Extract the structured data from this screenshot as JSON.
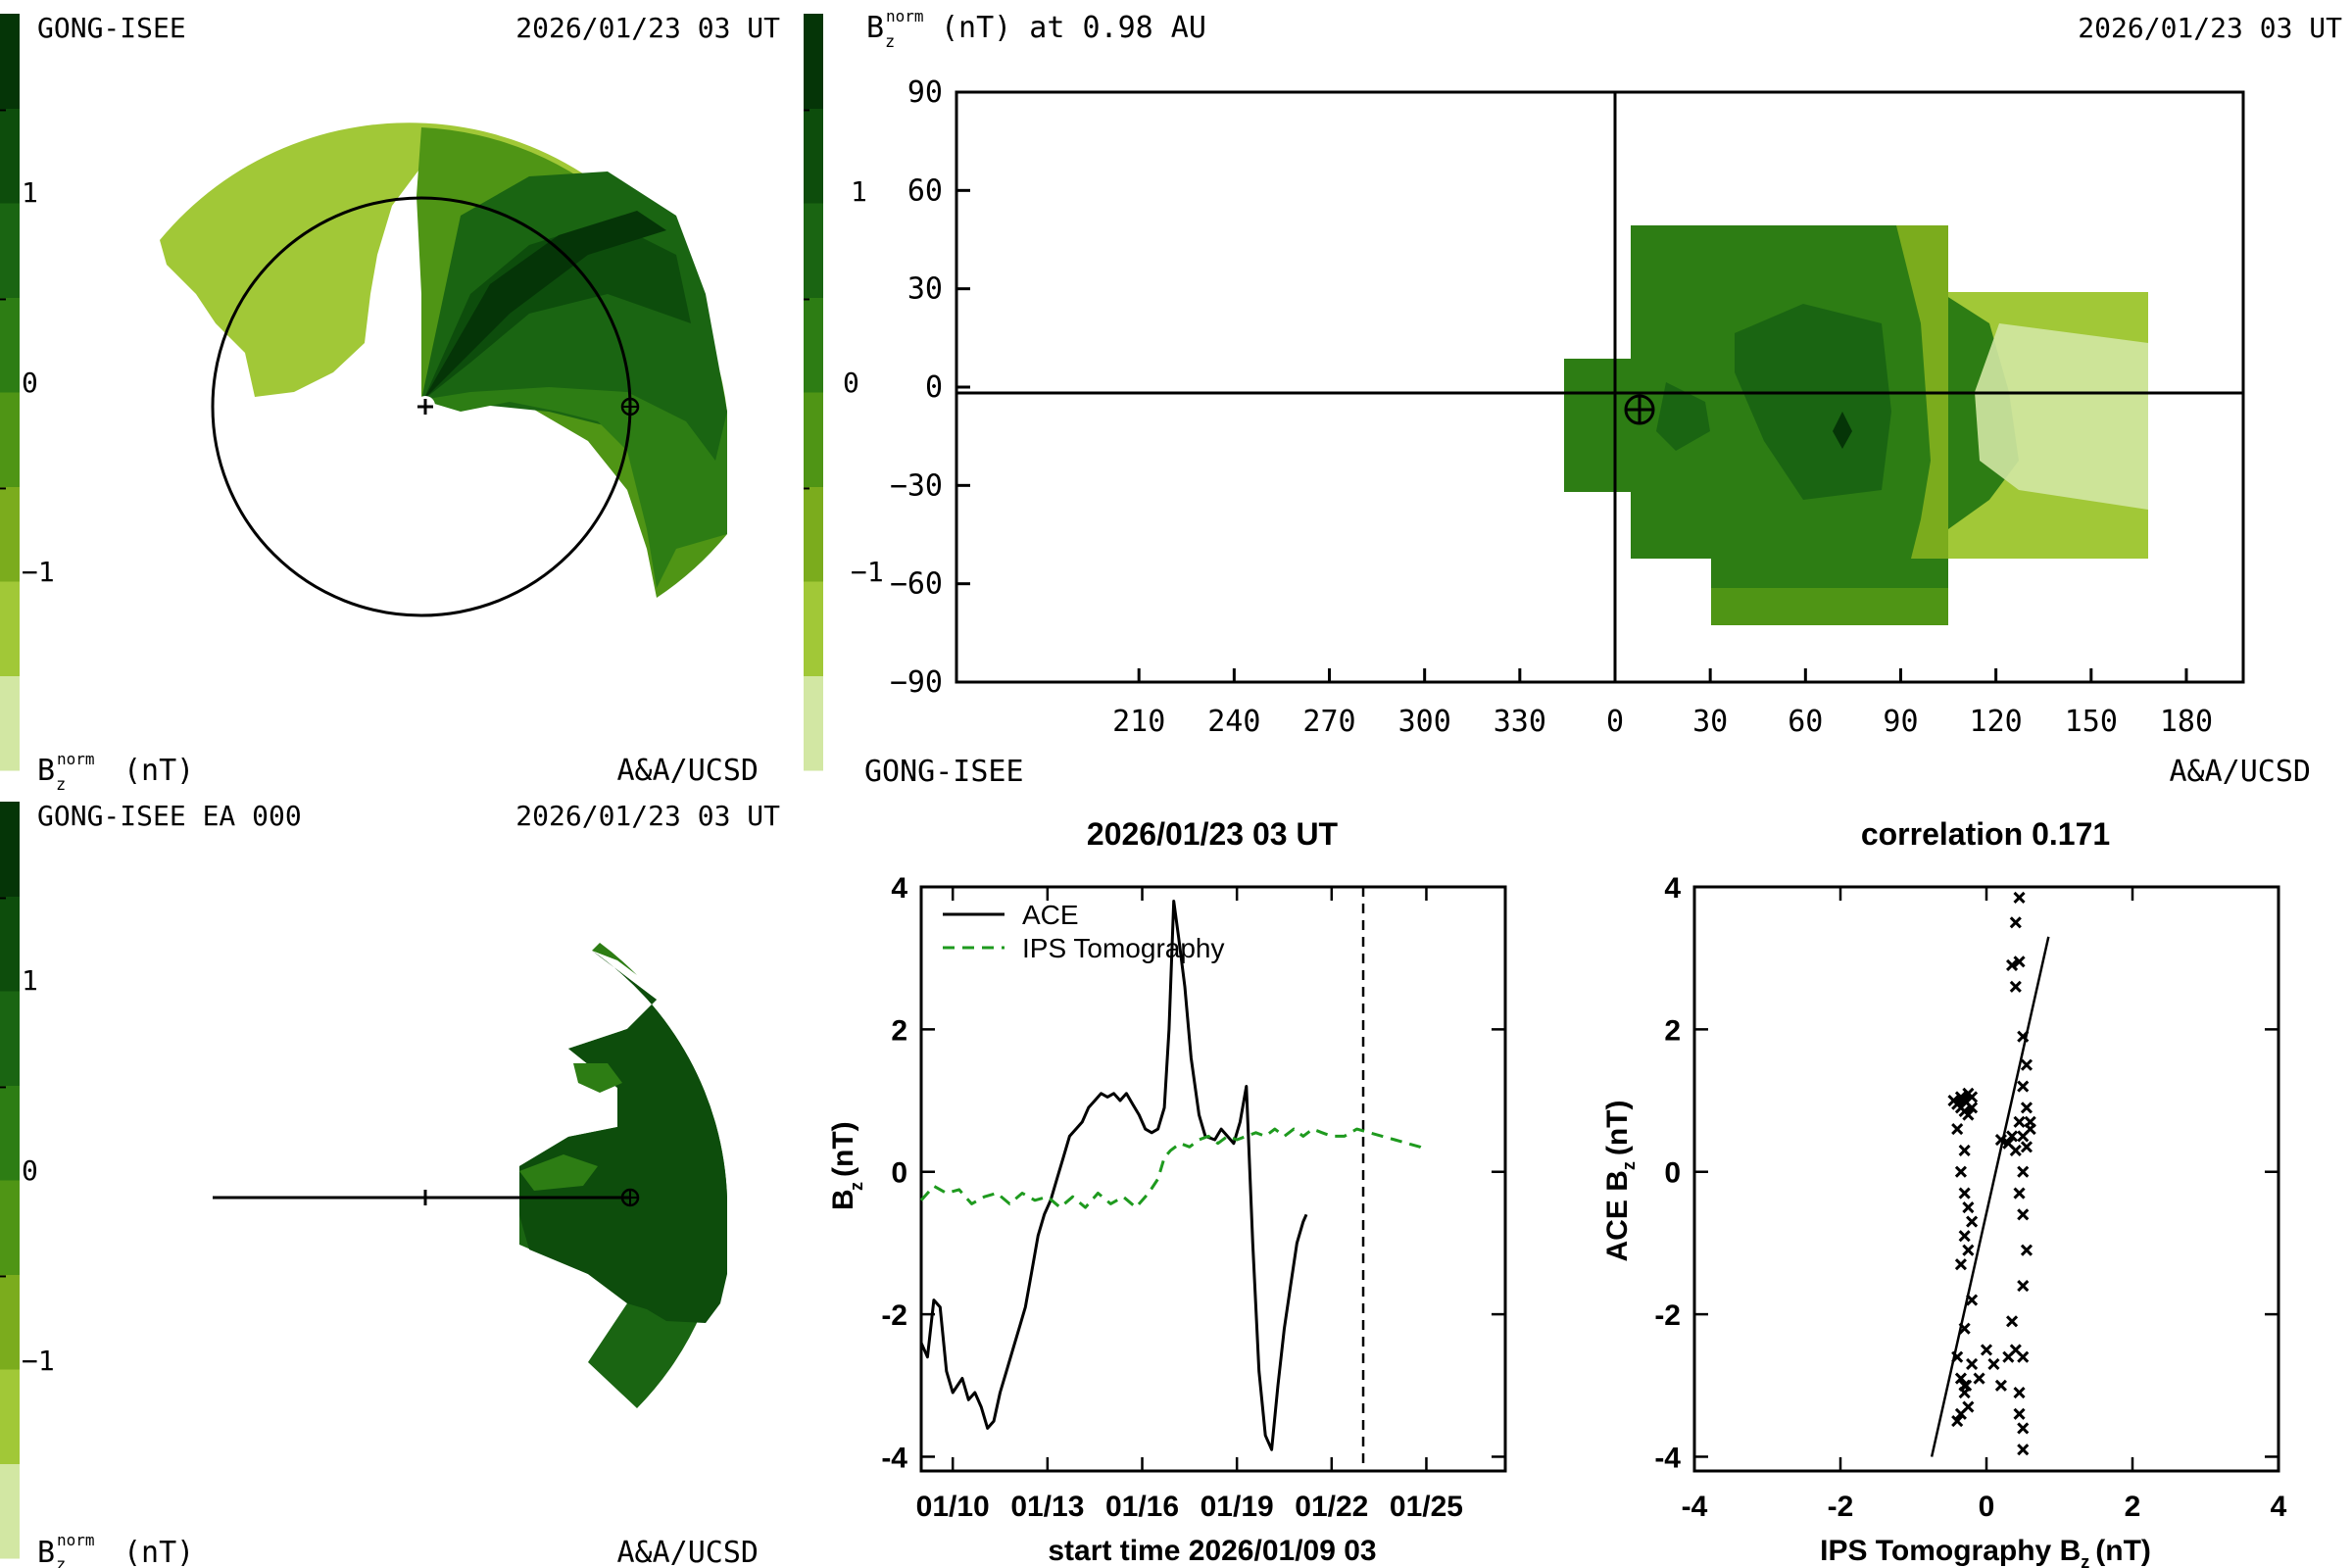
{
  "colors": {
    "scale": [
      "#d2e7a3",
      "#a1c837",
      "#7bac1d",
      "#4f9515",
      "#2d7d14",
      "#1a6512",
      "#0d4d0c",
      "#053507"
    ],
    "background": "#ffffff",
    "ink": "#000000",
    "ips_line": "#1e9a1e"
  },
  "icons": {
    "earth": "earth-crosshair-icon",
    "sun": "sun-plus-icon"
  },
  "panel_top_left": {
    "source": "GONG-ISEE",
    "datetime": "2026/01/23 03 UT",
    "cbar_ticks": [
      "1",
      "0",
      "−1"
    ],
    "cbar_label": "Bᶻ",
    "cbar_label_sup": "norm",
    "cbar_label_unit": "(nT)",
    "credit": "A&A/UCSD"
  },
  "panel_top_right": {
    "title_var": "B",
    "title_sub": "z",
    "title_sup": "norm",
    "title_rest": "(nT) at 0.98 AU",
    "datetime": "2026/01/23 03 UT",
    "source": "GONG-ISEE",
    "credit": "A&A/UCSD",
    "cbar_ticks": [
      "1",
      "0",
      "−1"
    ],
    "yticks": [
      "90",
      "60",
      "30",
      "0",
      "−30",
      "−60",
      "−90"
    ],
    "xticks": [
      "210",
      "240",
      "270",
      "300",
      "330",
      "0",
      "30",
      "60",
      "90",
      "120",
      "150",
      "180"
    ]
  },
  "panel_bottom_left": {
    "source": "GONG-ISEE EA 000",
    "datetime": "2026/01/23 03 UT",
    "cbar_ticks": [
      "1",
      "0",
      "−1"
    ],
    "cbar_label": "Bᶻ",
    "cbar_label_sup": "norm",
    "cbar_label_unit": "(nT)",
    "credit": "A&A/UCSD"
  },
  "chart_data": [
    {
      "type": "line",
      "title": "2026/01/23 03 UT",
      "xlabel": "start time 2026/01/09 03",
      "ylabel_var": "B",
      "ylabel_sub": "z",
      "ylabel_unit": "(nT)",
      "xtick_labels": [
        "01/10",
        "01/13",
        "01/16",
        "01/19",
        "01/22",
        "01/25"
      ],
      "xtick_days": [
        1,
        4,
        7,
        10,
        13,
        16
      ],
      "xlim_days": [
        0,
        18.5
      ],
      "ylim": [
        -4.2,
        4
      ],
      "ytick_labels": [
        "4",
        "2",
        "0",
        "-2",
        "-4"
      ],
      "ytick_values": [
        4,
        2,
        0,
        -2,
        -4
      ],
      "vline_day": 14,
      "legend": "top-left",
      "series": [
        {
          "name": "ACE",
          "style": "solid",
          "points": [
            [
              0,
              -2.4
            ],
            [
              0.2,
              -2.6
            ],
            [
              0.4,
              -1.8
            ],
            [
              0.6,
              -1.9
            ],
            [
              0.8,
              -2.8
            ],
            [
              1.0,
              -3.1
            ],
            [
              1.3,
              -2.9
            ],
            [
              1.5,
              -3.2
            ],
            [
              1.7,
              -3.1
            ],
            [
              1.9,
              -3.3
            ],
            [
              2.1,
              -3.6
            ],
            [
              2.3,
              -3.5
            ],
            [
              2.5,
              -3.1
            ],
            [
              2.7,
              -2.8
            ],
            [
              2.9,
              -2.5
            ],
            [
              3.1,
              -2.2
            ],
            [
              3.3,
              -1.9
            ],
            [
              3.5,
              -1.4
            ],
            [
              3.7,
              -0.9
            ],
            [
              3.9,
              -0.6
            ],
            [
              4.1,
              -0.4
            ],
            [
              4.3,
              -0.1
            ],
            [
              4.5,
              0.2
            ],
            [
              4.7,
              0.5
            ],
            [
              4.9,
              0.6
            ],
            [
              5.1,
              0.7
            ],
            [
              5.3,
              0.9
            ],
            [
              5.5,
              1.0
            ],
            [
              5.7,
              1.1
            ],
            [
              5.9,
              1.05
            ],
            [
              6.1,
              1.1
            ],
            [
              6.3,
              1.0
            ],
            [
              6.5,
              1.1
            ],
            [
              6.7,
              0.95
            ],
            [
              6.9,
              0.8
            ],
            [
              7.1,
              0.6
            ],
            [
              7.3,
              0.55
            ],
            [
              7.5,
              0.6
            ],
            [
              7.7,
              0.9
            ],
            [
              7.85,
              2.0
            ],
            [
              8.0,
              3.8
            ],
            [
              8.15,
              3.3
            ],
            [
              8.35,
              2.6
            ],
            [
              8.55,
              1.6
            ],
            [
              8.8,
              0.8
            ],
            [
              9.0,
              0.5
            ],
            [
              9.3,
              0.45
            ],
            [
              9.5,
              0.6
            ],
            [
              9.7,
              0.5
            ],
            [
              9.9,
              0.4
            ],
            [
              10.1,
              0.7
            ],
            [
              10.3,
              1.2
            ],
            [
              10.5,
              -1.0
            ],
            [
              10.7,
              -2.8
            ],
            [
              10.9,
              -3.7
            ],
            [
              11.1,
              -3.9
            ],
            [
              11.3,
              -3.0
            ],
            [
              11.5,
              -2.2
            ],
            [
              11.7,
              -1.6
            ],
            [
              11.9,
              -1.0
            ],
            [
              12.1,
              -0.7
            ],
            [
              12.2,
              -0.6
            ]
          ]
        },
        {
          "name": "IPS Tomography",
          "style": "dashed",
          "points": [
            [
              0,
              -0.4
            ],
            [
              0.4,
              -0.2
            ],
            [
              0.8,
              -0.3
            ],
            [
              1.2,
              -0.25
            ],
            [
              1.6,
              -0.45
            ],
            [
              2.0,
              -0.35
            ],
            [
              2.4,
              -0.3
            ],
            [
              2.8,
              -0.45
            ],
            [
              3.2,
              -0.3
            ],
            [
              3.6,
              -0.4
            ],
            [
              4.0,
              -0.35
            ],
            [
              4.4,
              -0.5
            ],
            [
              4.8,
              -0.35
            ],
            [
              5.2,
              -0.5
            ],
            [
              5.6,
              -0.3
            ],
            [
              6.0,
              -0.45
            ],
            [
              6.4,
              -0.35
            ],
            [
              6.8,
              -0.5
            ],
            [
              7.2,
              -0.3
            ],
            [
              7.5,
              -0.1
            ],
            [
              7.7,
              0.2
            ],
            [
              7.9,
              0.3
            ],
            [
              8.2,
              0.4
            ],
            [
              8.5,
              0.35
            ],
            [
              8.8,
              0.45
            ],
            [
              9.1,
              0.5
            ],
            [
              9.4,
              0.4
            ],
            [
              9.7,
              0.5
            ],
            [
              10.0,
              0.45
            ],
            [
              10.3,
              0.5
            ],
            [
              10.6,
              0.55
            ],
            [
              10.9,
              0.5
            ],
            [
              11.2,
              0.6
            ],
            [
              11.5,
              0.5
            ],
            [
              11.8,
              0.6
            ],
            [
              12.1,
              0.5
            ],
            [
              12.4,
              0.6
            ],
            [
              12.7,
              0.55
            ],
            [
              13.0,
              0.5
            ],
            [
              13.4,
              0.5
            ],
            [
              13.8,
              0.6
            ],
            [
              14.2,
              0.55
            ],
            [
              14.6,
              0.5
            ],
            [
              15.0,
              0.45
            ],
            [
              15.4,
              0.4
            ],
            [
              15.8,
              0.35
            ],
            [
              16.0,
              0.3
            ]
          ]
        }
      ]
    },
    {
      "type": "scatter",
      "title": "correlation 0.171",
      "xlabel_pre": "IPS Tomography B",
      "xlabel_sub": "z",
      "xlabel_unit": "(nT)",
      "ylabel_pre": "ACE B",
      "ylabel_sub": "z",
      "ylabel_unit": "(nT)",
      "xlim": [
        -4,
        4
      ],
      "ylim": [
        -4.2,
        4
      ],
      "xtick_labels": [
        "-4",
        "-2",
        "0",
        "2",
        "4"
      ],
      "xtick_values": [
        -4,
        -2,
        0,
        2,
        4
      ],
      "ytick_labels": [
        "4",
        "2",
        "0",
        "-2",
        "-4"
      ],
      "ytick_values": [
        4,
        2,
        0,
        -2,
        -4
      ],
      "fit_line": [
        [
          -0.75,
          -4.0
        ],
        [
          0.85,
          3.3
        ]
      ],
      "points": [
        [
          -0.3,
          1.0
        ],
        [
          -0.35,
          0.9
        ],
        [
          -0.2,
          1.05
        ],
        [
          -0.4,
          0.95
        ],
        [
          -0.25,
          1.1
        ],
        [
          -0.3,
          0.85
        ],
        [
          -0.45,
          1.0
        ],
        [
          -0.2,
          0.9
        ],
        [
          -0.35,
          1.05
        ],
        [
          -0.25,
          0.8
        ],
        [
          -0.4,
          0.6
        ],
        [
          -0.3,
          0.3
        ],
        [
          -0.35,
          0.0
        ],
        [
          -0.3,
          -0.3
        ],
        [
          -0.25,
          -0.5
        ],
        [
          -0.2,
          -0.7
        ],
        [
          -0.3,
          -0.9
        ],
        [
          -0.25,
          -1.1
        ],
        [
          -0.35,
          -1.3
        ],
        [
          -0.2,
          -1.8
        ],
        [
          -0.3,
          -2.2
        ],
        [
          -0.4,
          -2.6
        ],
        [
          -0.35,
          -2.9
        ],
        [
          -0.3,
          -3.1
        ],
        [
          -0.25,
          -3.3
        ],
        [
          -0.4,
          -3.5
        ],
        [
          -0.3,
          -3.0
        ],
        [
          -0.2,
          -2.7
        ],
        [
          -0.35,
          -3.4
        ],
        [
          -0.28,
          -3.0
        ],
        [
          -0.1,
          -2.9
        ],
        [
          0.0,
          -2.5
        ],
        [
          0.1,
          -2.7
        ],
        [
          0.2,
          -3.0
        ],
        [
          0.3,
          -2.6
        ],
        [
          0.4,
          -2.5
        ],
        [
          0.5,
          -2.6
        ],
        [
          0.45,
          -3.1
        ],
        [
          0.5,
          -3.6
        ],
        [
          0.5,
          -3.9
        ],
        [
          0.45,
          -3.4
        ],
        [
          0.35,
          -2.1
        ],
        [
          0.5,
          -1.6
        ],
        [
          0.55,
          -1.1
        ],
        [
          0.5,
          -0.6
        ],
        [
          0.45,
          -0.3
        ],
        [
          0.5,
          0.0
        ],
        [
          0.4,
          0.3
        ],
        [
          0.5,
          0.5
        ],
        [
          0.45,
          0.7
        ],
        [
          0.55,
          0.9
        ],
        [
          0.5,
          1.2
        ],
        [
          0.55,
          1.5
        ],
        [
          0.5,
          1.9
        ],
        [
          0.4,
          2.6
        ],
        [
          0.35,
          2.9
        ],
        [
          0.45,
          2.95
        ],
        [
          0.4,
          3.5
        ],
        [
          0.45,
          3.85
        ],
        [
          0.6,
          0.6
        ],
        [
          0.3,
          0.4
        ],
        [
          0.2,
          0.45
        ],
        [
          0.35,
          0.5
        ],
        [
          0.55,
          0.35
        ],
        [
          0.6,
          0.7
        ]
      ]
    }
  ]
}
